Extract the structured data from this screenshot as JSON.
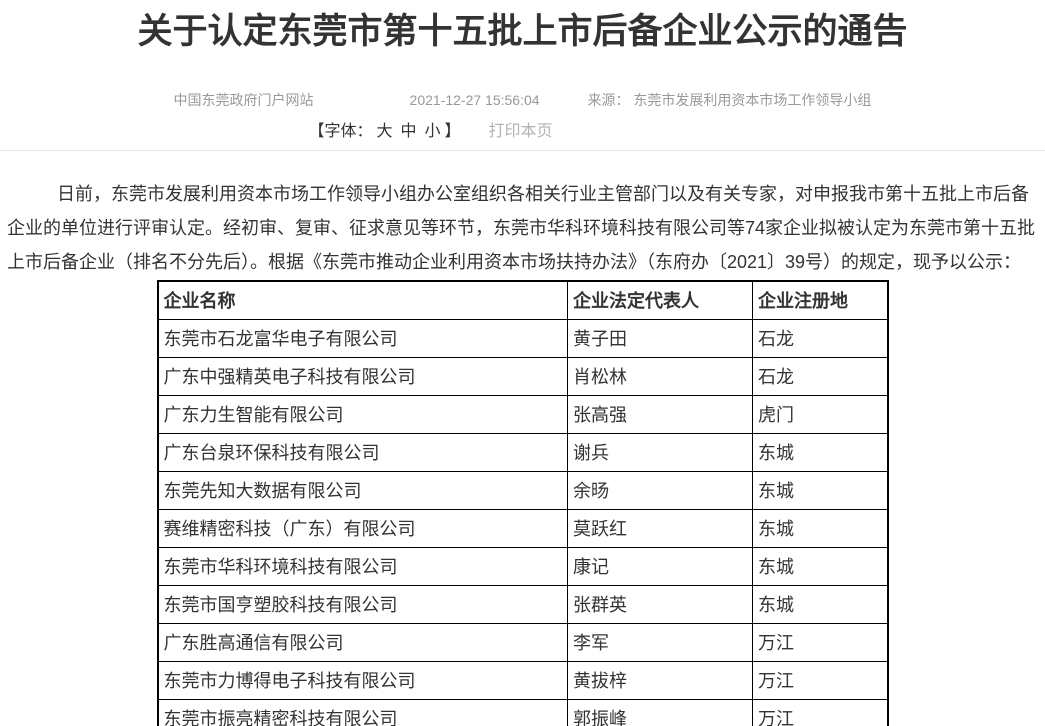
{
  "page": {
    "title": "关于认定东莞市第十五批上市后备企业公示的通告"
  },
  "meta": {
    "site_name": "中国东莞政府门户网站",
    "publish_time": "2021-12-27 15:56:04",
    "source_label": "来源：",
    "source_name": "东莞市发展利用资本市场工作领导小组",
    "font_size_prefix": "【字体：",
    "font_size_large": "大",
    "font_size_medium": "中",
    "font_size_small": "小",
    "font_size_suffix": "】",
    "print_label": "打印本页"
  },
  "article": {
    "paragraph": "日前，东莞市发展利用资本市场工作领导小组办公室组织各相关行业主管部门以及有关专家，对申报我市第十五批上市后备企业的单位进行评审认定。经初审、复审、征求意见等环节，东莞市华科环境科技有限公司等74家企业拟被认定为东莞市第十五批上市后备企业（排名不分先后）。根据《东莞市推动企业利用资本市场扶持办法》（东府办〔2021〕39号）的规定，现予以公示："
  },
  "company_table": {
    "headers": [
      "企业名称",
      "企业法定代表人",
      "企业注册地"
    ],
    "rows": [
      {
        "name": "东莞市石龙富华电子有限公司",
        "representative": "黄子田",
        "location": "石龙"
      },
      {
        "name": "广东中强精英电子科技有限公司",
        "representative": "肖松林",
        "location": "石龙"
      },
      {
        "name": "广东力生智能有限公司",
        "representative": "张高强",
        "location": "虎门"
      },
      {
        "name": "广东台泉环保科技有限公司",
        "representative": "谢兵",
        "location": "东城"
      },
      {
        "name": "东莞先知大数据有限公司",
        "representative": "余旸",
        "location": "东城"
      },
      {
        "name": "赛维精密科技（广东）有限公司",
        "representative": "莫跃红",
        "location": "东城"
      },
      {
        "name": "东莞市华科环境科技有限公司",
        "representative": "康记",
        "location": "东城"
      },
      {
        "name": "东莞市国亨塑胶科技有限公司",
        "representative": "张群英",
        "location": "东城"
      },
      {
        "name": "广东胜高通信有限公司",
        "representative": "李军",
        "location": "万江"
      },
      {
        "name": "东莞市力博得电子科技有限公司",
        "representative": "黄拔梓",
        "location": "万江"
      },
      {
        "name": "东莞市振亮精密科技有限公司",
        "representative": "郭振峰",
        "location": "万江"
      }
    ]
  },
  "colors": {
    "title_text": "#333333",
    "meta_text": "#999999",
    "print_text": "#b3b3b3",
    "body_text": "#333333",
    "table_border": "#000000",
    "divider": "#e7e7e7"
  }
}
